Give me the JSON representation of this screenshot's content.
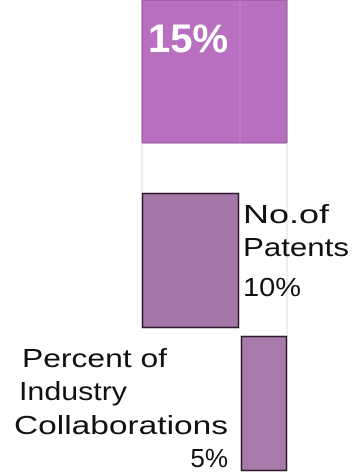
{
  "blocks": [
    {
      "value_label": "15%"
    },
    {
      "label_lines": [
        "No.of",
        "Patents"
      ],
      "value_label": "10%"
    },
    {
      "label_lines": [
        "Percent of",
        "Industry",
        "Collaborations"
      ],
      "value_label": "5%"
    }
  ]
}
